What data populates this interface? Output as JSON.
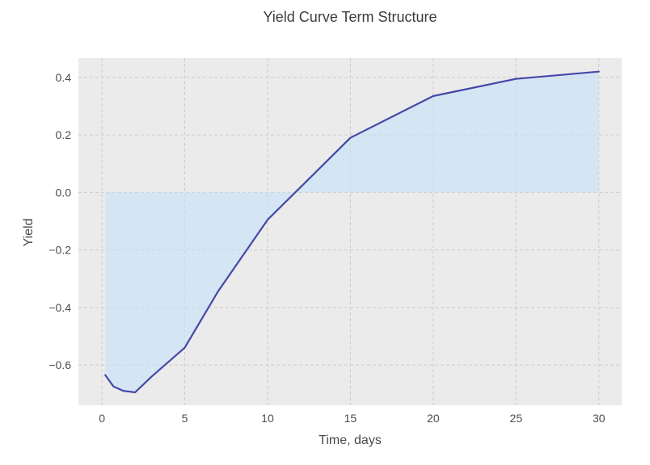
{
  "chart_data": {
    "type": "line",
    "title": "Yield Curve Term Structure",
    "xlabel": "Time, days",
    "ylabel": "Yield",
    "x": [
      0.2,
      0.7,
      1.3,
      2,
      3,
      5,
      7,
      10,
      15,
      20,
      25,
      30
    ],
    "y": [
      -0.635,
      -0.675,
      -0.69,
      -0.695,
      -0.64,
      -0.54,
      -0.345,
      -0.095,
      0.19,
      0.335,
      0.395,
      0.42
    ],
    "series_name": "yield-curve",
    "fill_between_baseline": 0,
    "xtick_values": [
      0,
      5,
      10,
      15,
      20,
      25,
      30
    ],
    "xtick_labels": [
      "0",
      "5",
      "10",
      "15",
      "20",
      "25",
      "30"
    ],
    "ytick_values": [
      0.4,
      0.2,
      0.0,
      -0.2,
      -0.4,
      -0.6
    ],
    "ytick_labels": [
      "0.4",
      "0.2",
      "0.0",
      "−0.2",
      "−0.4",
      "−0.6"
    ],
    "xlim": [
      -1.42,
      31.38
    ],
    "ylim": [
      -0.74,
      0.467
    ],
    "grid": true,
    "grid_style": "dashed",
    "legend_position": "none",
    "colors": {
      "line": "#4747a8",
      "fill": "rgba(197,227,248,0.6)",
      "plot_background": "#ebebeb",
      "figure_background": "#ffffff",
      "grid": "#cbcbcb",
      "tick_text": "#4d4d4d",
      "title_text": "#3d3d3d"
    }
  }
}
